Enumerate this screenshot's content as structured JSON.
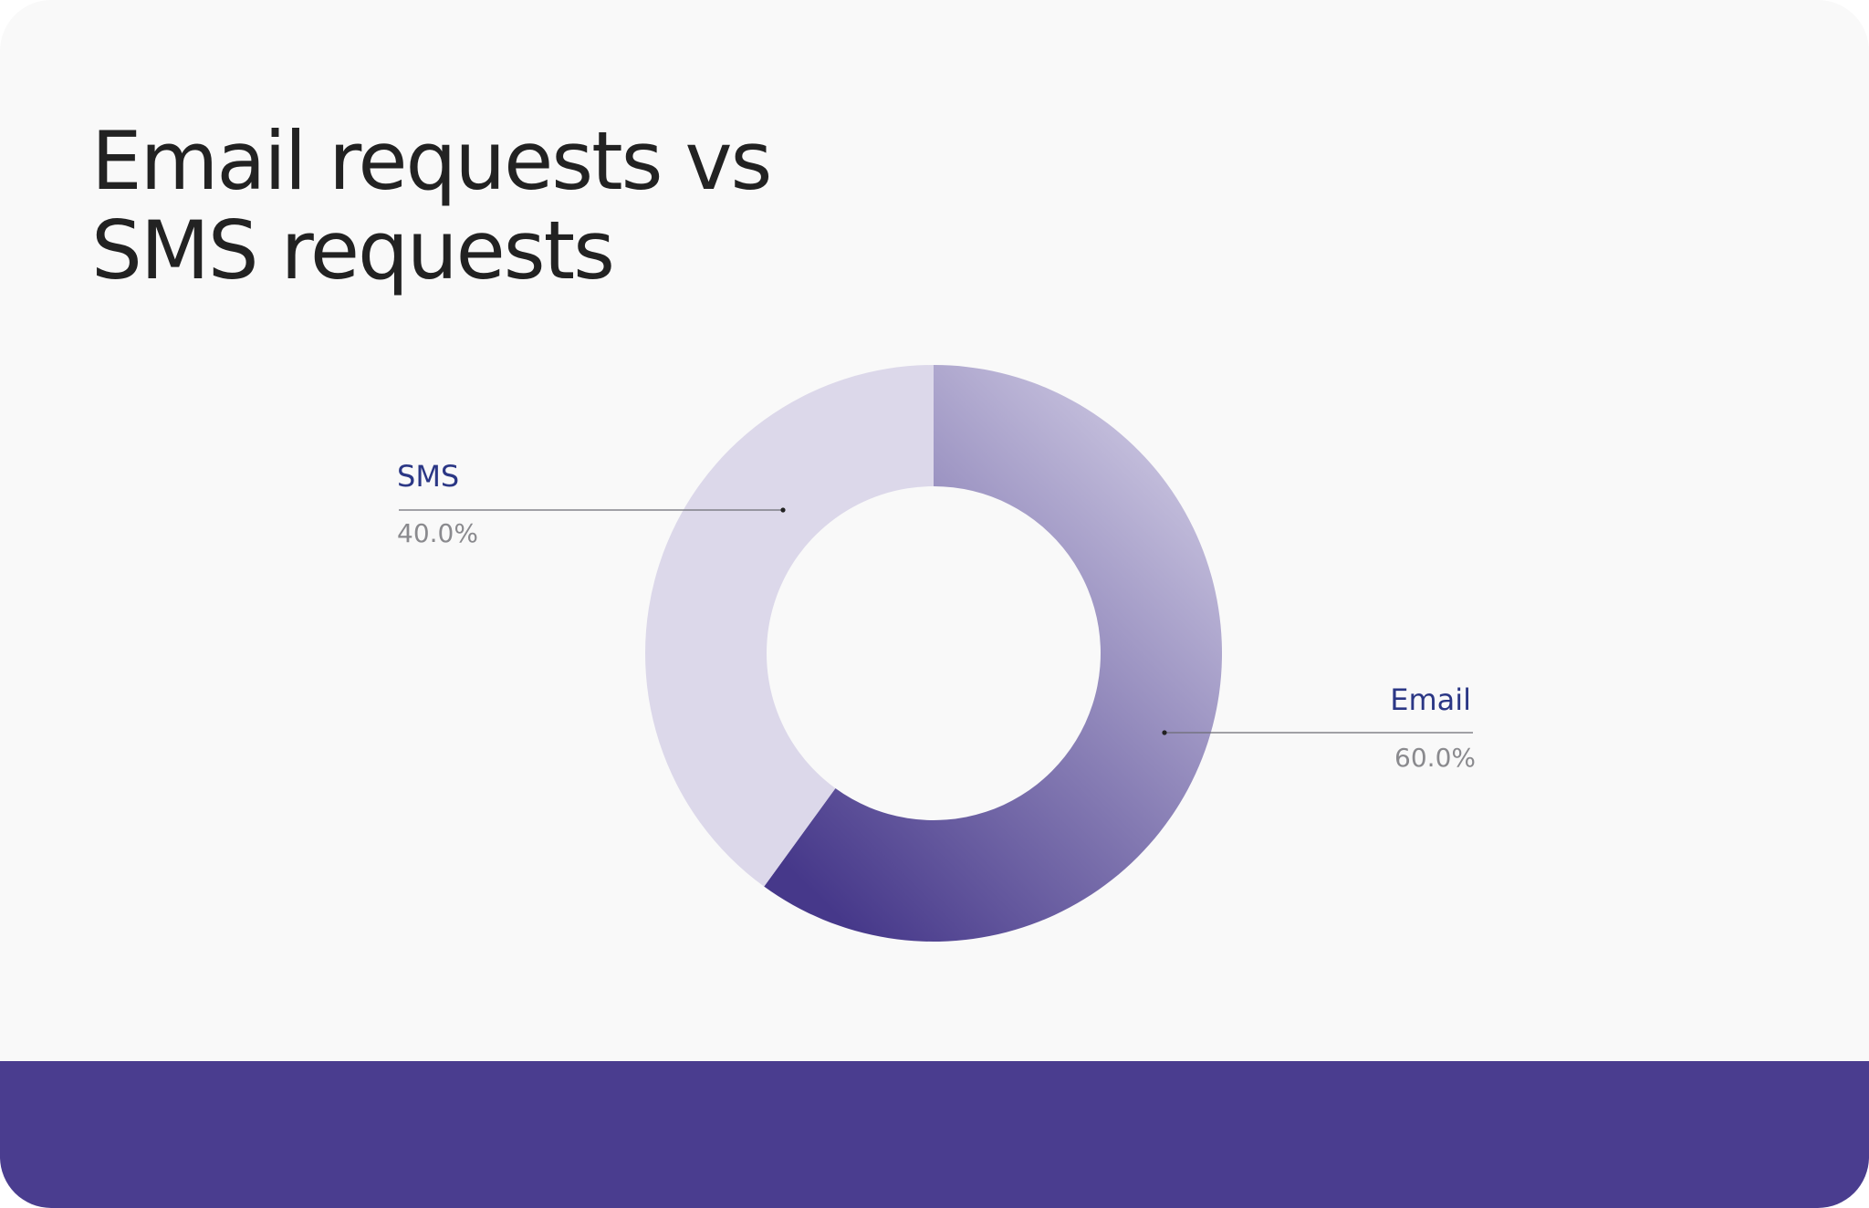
{
  "chart_data": {
    "type": "pie",
    "donut": true,
    "title": "Email requests vs SMS requests",
    "categories": [
      "Email",
      "SMS"
    ],
    "values": [
      60,
      40
    ],
    "value_labels": [
      "60.0%",
      "40.0%"
    ],
    "colors": [
      "#46388a",
      "#dcd8ea"
    ]
  }
}
